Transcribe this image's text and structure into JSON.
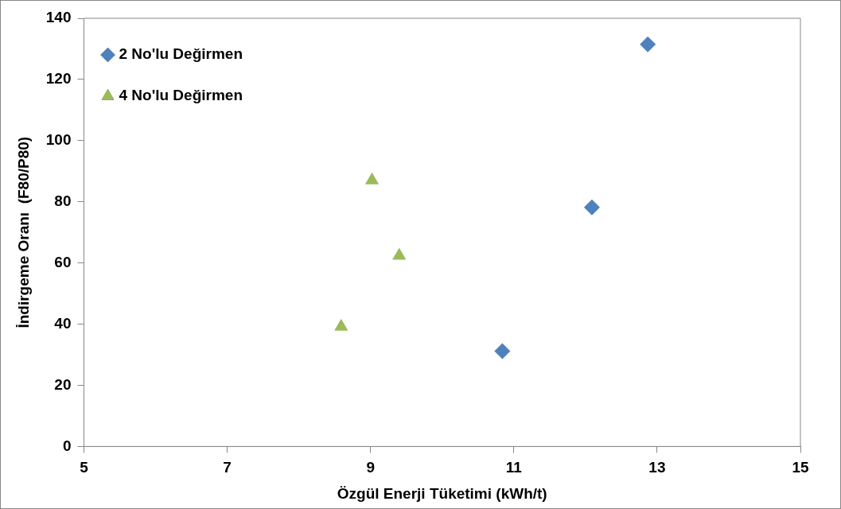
{
  "chart_data": {
    "type": "scatter",
    "xlabel": "Özgül Enerji Tüketimi (kWh/t)",
    "ylabel": "İndirgeme Oranı  (F80/P80)",
    "xlim": [
      5,
      15
    ],
    "xticks": [
      5,
      7,
      9,
      11,
      13,
      15
    ],
    "ylim": [
      0,
      140
    ],
    "yticks": [
      0,
      20,
      40,
      60,
      80,
      100,
      120,
      140
    ],
    "grid": false,
    "legend": "top left",
    "series": [
      {
        "name": "2 No'lu Değirmen",
        "color": "#4f81bd",
        "marker": "diamond",
        "x": [
          10.84,
          12.09,
          12.87
        ],
        "values": [
          31.2,
          78.2,
          131.5
        ]
      },
      {
        "name": "4 No'lu Değirmen",
        "color": "#9bbb59",
        "marker": "triangle",
        "x": [
          8.59,
          9.02,
          9.4
        ],
        "values": [
          39.2,
          87,
          62.4
        ]
      }
    ]
  }
}
